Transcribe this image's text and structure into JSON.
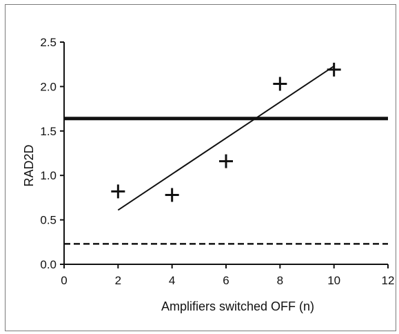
{
  "chart_data": {
    "type": "scatter",
    "xlabel": "Amplifiers switched OFF (n)",
    "ylabel": "RAD2D",
    "xlim": [
      0,
      12
    ],
    "ylim": [
      0,
      2.5
    ],
    "x_ticks": [
      {
        "value": 0,
        "label": "0"
      },
      {
        "value": 2,
        "label": "2"
      },
      {
        "value": 4,
        "label": "4"
      },
      {
        "value": 6,
        "label": "6"
      },
      {
        "value": 8,
        "label": "8"
      },
      {
        "value": 10,
        "label": "10"
      },
      {
        "value": 12,
        "label": "12"
      }
    ],
    "y_ticks": [
      {
        "value": 0,
        "label": "0.0"
      },
      {
        "value": 0.5,
        "label": "0.5"
      },
      {
        "value": 1.0,
        "label": "1.0"
      },
      {
        "value": 1.5,
        "label": "1.5"
      },
      {
        "value": 2.0,
        "label": "2.0"
      },
      {
        "value": 2.5,
        "label": "2.5"
      }
    ],
    "points": {
      "x": [
        2,
        4,
        6,
        8,
        10
      ],
      "y": [
        0.82,
        0.78,
        1.16,
        2.03,
        2.19
      ],
      "marker": "plus"
    },
    "trend_line": {
      "x": [
        2,
        10
      ],
      "y": [
        0.61,
        2.23
      ]
    },
    "hlines": [
      {
        "y": 1.64,
        "style": "solid-thick"
      },
      {
        "y": 0.23,
        "style": "dashed"
      }
    ],
    "grid": false,
    "legend": "none",
    "colors": {
      "ink": "#111111",
      "frame": "#7a7a7a",
      "background": "#ffffff"
    }
  }
}
